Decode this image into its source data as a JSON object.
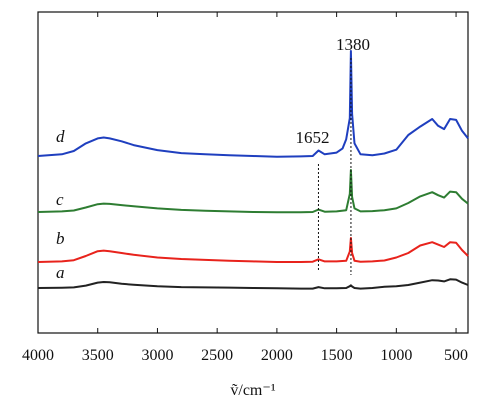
{
  "chart_data": {
    "type": "line",
    "xlabel": "ṽ/cm⁻¹",
    "xlim": [
      4000,
      400
    ],
    "x_reversed": true,
    "xticks": [
      "4000",
      "3500",
      "3000",
      "2500",
      "2000",
      "1500",
      "1000",
      "500"
    ],
    "y_ticks_shown": false,
    "grid": false,
    "peak_markers": [
      {
        "label": "1380",
        "x": 1380
      },
      {
        "label": "1652",
        "x": 1652
      }
    ],
    "series": [
      {
        "name": "a",
        "color": "#222222",
        "points": [
          [
            4000,
            0.0
          ],
          [
            3800,
            0.1
          ],
          [
            3700,
            0.2
          ],
          [
            3600,
            0.8
          ],
          [
            3500,
            1.8
          ],
          [
            3450,
            2.0
          ],
          [
            3400,
            1.9
          ],
          [
            3300,
            1.4
          ],
          [
            3200,
            1.1
          ],
          [
            3000,
            0.6
          ],
          [
            2800,
            0.3
          ],
          [
            2600,
            0.2
          ],
          [
            2400,
            0.15
          ],
          [
            2200,
            0.0
          ],
          [
            2000,
            -0.1
          ],
          [
            1800,
            -0.2
          ],
          [
            1700,
            -0.2
          ],
          [
            1652,
            0.3
          ],
          [
            1600,
            -0.1
          ],
          [
            1500,
            -0.1
          ],
          [
            1420,
            0.0
          ],
          [
            1390,
            0.6
          ],
          [
            1380,
            0.9
          ],
          [
            1370,
            0.5
          ],
          [
            1350,
            0.0
          ],
          [
            1300,
            -0.2
          ],
          [
            1200,
            0.0
          ],
          [
            1100,
            0.4
          ],
          [
            1000,
            0.6
          ],
          [
            900,
            1.0
          ],
          [
            800,
            1.8
          ],
          [
            700,
            2.6
          ],
          [
            650,
            2.5
          ],
          [
            600,
            2.2
          ],
          [
            550,
            2.9
          ],
          [
            500,
            2.8
          ],
          [
            450,
            1.8
          ],
          [
            400,
            1.0
          ]
        ]
      },
      {
        "name": "b",
        "color": "#e8231c",
        "points": [
          [
            4000,
            0.0
          ],
          [
            3800,
            0.2
          ],
          [
            3700,
            0.6
          ],
          [
            3600,
            2.0
          ],
          [
            3500,
            3.6
          ],
          [
            3450,
            3.8
          ],
          [
            3400,
            3.6
          ],
          [
            3300,
            3.0
          ],
          [
            3200,
            2.4
          ],
          [
            3000,
            1.5
          ],
          [
            2800,
            1.0
          ],
          [
            2600,
            0.7
          ],
          [
            2400,
            0.4
          ],
          [
            2200,
            0.2
          ],
          [
            2000,
            0.0
          ],
          [
            1800,
            0.0
          ],
          [
            1700,
            0.1
          ],
          [
            1652,
            0.9
          ],
          [
            1600,
            0.2
          ],
          [
            1500,
            0.2
          ],
          [
            1420,
            0.4
          ],
          [
            1390,
            3.5
          ],
          [
            1380,
            8.0
          ],
          [
            1370,
            3.0
          ],
          [
            1350,
            0.4
          ],
          [
            1300,
            0.1
          ],
          [
            1200,
            0.2
          ],
          [
            1100,
            0.5
          ],
          [
            1000,
            1.5
          ],
          [
            900,
            3.0
          ],
          [
            800,
            5.5
          ],
          [
            700,
            6.6
          ],
          [
            650,
            5.8
          ],
          [
            600,
            5.0
          ],
          [
            550,
            6.6
          ],
          [
            500,
            6.4
          ],
          [
            450,
            4.0
          ],
          [
            400,
            2.0
          ]
        ]
      },
      {
        "name": "c",
        "color": "#2e7d32",
        "points": [
          [
            4000,
            0.0
          ],
          [
            3800,
            0.2
          ],
          [
            3700,
            0.5
          ],
          [
            3600,
            1.5
          ],
          [
            3500,
            2.6
          ],
          [
            3450,
            2.8
          ],
          [
            3400,
            2.7
          ],
          [
            3300,
            2.3
          ],
          [
            3200,
            1.9
          ],
          [
            3000,
            1.2
          ],
          [
            2800,
            0.7
          ],
          [
            2600,
            0.4
          ],
          [
            2400,
            0.2
          ],
          [
            2200,
            0.0
          ],
          [
            2000,
            -0.1
          ],
          [
            1800,
            -0.1
          ],
          [
            1700,
            0.0
          ],
          [
            1652,
            0.8
          ],
          [
            1600,
            0.1
          ],
          [
            1500,
            0.2
          ],
          [
            1420,
            0.6
          ],
          [
            1390,
            6.0
          ],
          [
            1380,
            14.0
          ],
          [
            1370,
            5.0
          ],
          [
            1350,
            1.2
          ],
          [
            1300,
            0.2
          ],
          [
            1200,
            0.3
          ],
          [
            1100,
            0.6
          ],
          [
            1000,
            1.2
          ],
          [
            900,
            3.0
          ],
          [
            800,
            5.2
          ],
          [
            700,
            6.6
          ],
          [
            650,
            5.6
          ],
          [
            600,
            4.8
          ],
          [
            550,
            6.8
          ],
          [
            500,
            6.6
          ],
          [
            450,
            4.4
          ],
          [
            400,
            2.8
          ]
        ]
      },
      {
        "name": "d",
        "color": "#1f3fbf",
        "points": [
          [
            4000,
            0.0
          ],
          [
            3800,
            0.4
          ],
          [
            3700,
            1.2
          ],
          [
            3600,
            3.0
          ],
          [
            3500,
            4.2
          ],
          [
            3450,
            4.4
          ],
          [
            3400,
            4.2
          ],
          [
            3300,
            3.5
          ],
          [
            3200,
            2.6
          ],
          [
            3000,
            1.4
          ],
          [
            2800,
            0.7
          ],
          [
            2600,
            0.4
          ],
          [
            2400,
            0.2
          ],
          [
            2200,
            0.0
          ],
          [
            2000,
            -0.2
          ],
          [
            1800,
            -0.1
          ],
          [
            1700,
            0.0
          ],
          [
            1652,
            1.3
          ],
          [
            1600,
            0.4
          ],
          [
            1500,
            0.8
          ],
          [
            1450,
            1.8
          ],
          [
            1420,
            4.0
          ],
          [
            1390,
            9.0
          ],
          [
            1380,
            25.0
          ],
          [
            1370,
            10.0
          ],
          [
            1350,
            3.0
          ],
          [
            1300,
            0.4
          ],
          [
            1200,
            0.2
          ],
          [
            1100,
            0.6
          ],
          [
            1000,
            1.5
          ],
          [
            900,
            5.0
          ],
          [
            800,
            7.0
          ],
          [
            700,
            8.8
          ],
          [
            650,
            7.2
          ],
          [
            600,
            6.4
          ],
          [
            550,
            8.8
          ],
          [
            500,
            8.6
          ],
          [
            450,
            6.0
          ],
          [
            400,
            4.2
          ]
        ]
      }
    ]
  }
}
